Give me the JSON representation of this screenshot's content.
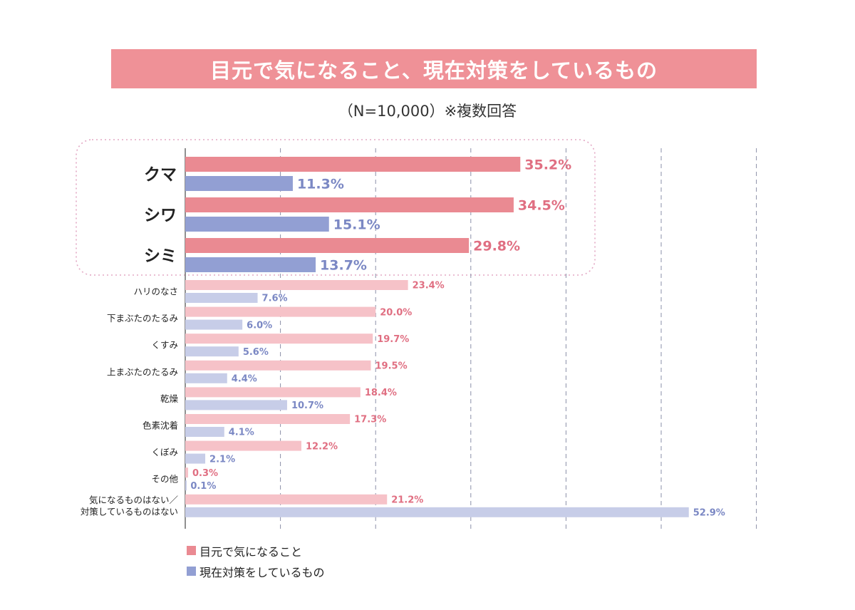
{
  "title": "目元で気になること、現在対策をしているもの",
  "subtitle": "（N=10,000）※複数回答",
  "colors": {
    "banner": "#ef9197",
    "concern_strong": "#ea8a92",
    "concern_light": "#f6c2c8",
    "concern_label": "#e06f82",
    "measure_strong": "#929fd3",
    "measure_light": "#c7cde8",
    "measure_label": "#7b88c4",
    "highlight_border": "#e3a8c4"
  },
  "legend": [
    {
      "label": "目元で気になること",
      "color": "#ea8a92"
    },
    {
      "label": "現在対策をしているもの",
      "color": "#929fd3"
    }
  ],
  "chart_data": {
    "type": "bar",
    "orientation": "horizontal",
    "unit": "%",
    "xlim": [
      0,
      60
    ],
    "grid": true,
    "highlighted_categories": [
      "クマ",
      "シワ",
      "シミ"
    ],
    "categories": [
      [
        "クマ"
      ],
      [
        "シワ"
      ],
      [
        "シミ"
      ],
      [
        "ハリのなさ"
      ],
      [
        "下まぶたのたるみ"
      ],
      [
        "くすみ"
      ],
      [
        "上まぶたのたるみ"
      ],
      [
        "乾燥"
      ],
      [
        "色素沈着"
      ],
      [
        "くぼみ"
      ],
      [
        "その他"
      ],
      [
        "気になるものはない／",
        "対策しているものはない"
      ]
    ],
    "series": [
      {
        "name": "目元で気になること",
        "values": [
          35.2,
          34.5,
          29.8,
          23.4,
          20.0,
          19.7,
          19.5,
          18.4,
          17.3,
          12.2,
          0.3,
          21.2
        ]
      },
      {
        "name": "現在対策をしているもの",
        "values": [
          11.3,
          15.1,
          13.7,
          7.6,
          6.0,
          5.6,
          4.4,
          10.7,
          4.1,
          2.1,
          0.1,
          52.9
        ]
      }
    ]
  }
}
